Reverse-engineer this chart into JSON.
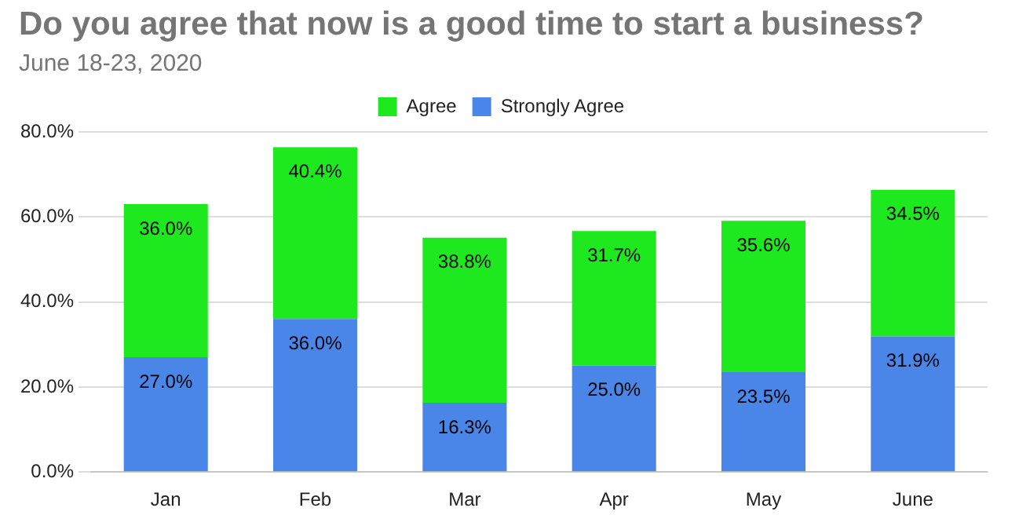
{
  "chart_data": {
    "type": "bar",
    "title": "Do you agree that now is a good time to start a business?",
    "subtitle": "June 18-23, 2020",
    "categories": [
      "Jan",
      "Feb",
      "Mar",
      "Apr",
      "May",
      "June"
    ],
    "stacked": true,
    "series": [
      {
        "name": "Strongly Agree",
        "color": "#4a86e8",
        "values": [
          27.0,
          36.0,
          16.3,
          25.0,
          23.5,
          31.9
        ],
        "value_labels": [
          "27.0%",
          "36.0%",
          "16.3%",
          "25.0%",
          "23.5%",
          "31.9%"
        ]
      },
      {
        "name": "Agree",
        "color": "#1ee81e",
        "values": [
          36.0,
          40.4,
          38.8,
          31.7,
          35.6,
          34.5
        ],
        "value_labels": [
          "36.0%",
          "40.4%",
          "38.8%",
          "31.7%",
          "35.6%",
          "34.5%"
        ]
      }
    ],
    "ylim": [
      0,
      80
    ],
    "yticks": [
      {
        "value": 0,
        "label": "0.0%"
      },
      {
        "value": 20,
        "label": "20.0%"
      },
      {
        "value": 40,
        "label": "40.0%"
      },
      {
        "value": 60,
        "label": "60.0%"
      },
      {
        "value": 80,
        "label": "80.0%"
      }
    ],
    "grid": "y",
    "legend": "top"
  }
}
